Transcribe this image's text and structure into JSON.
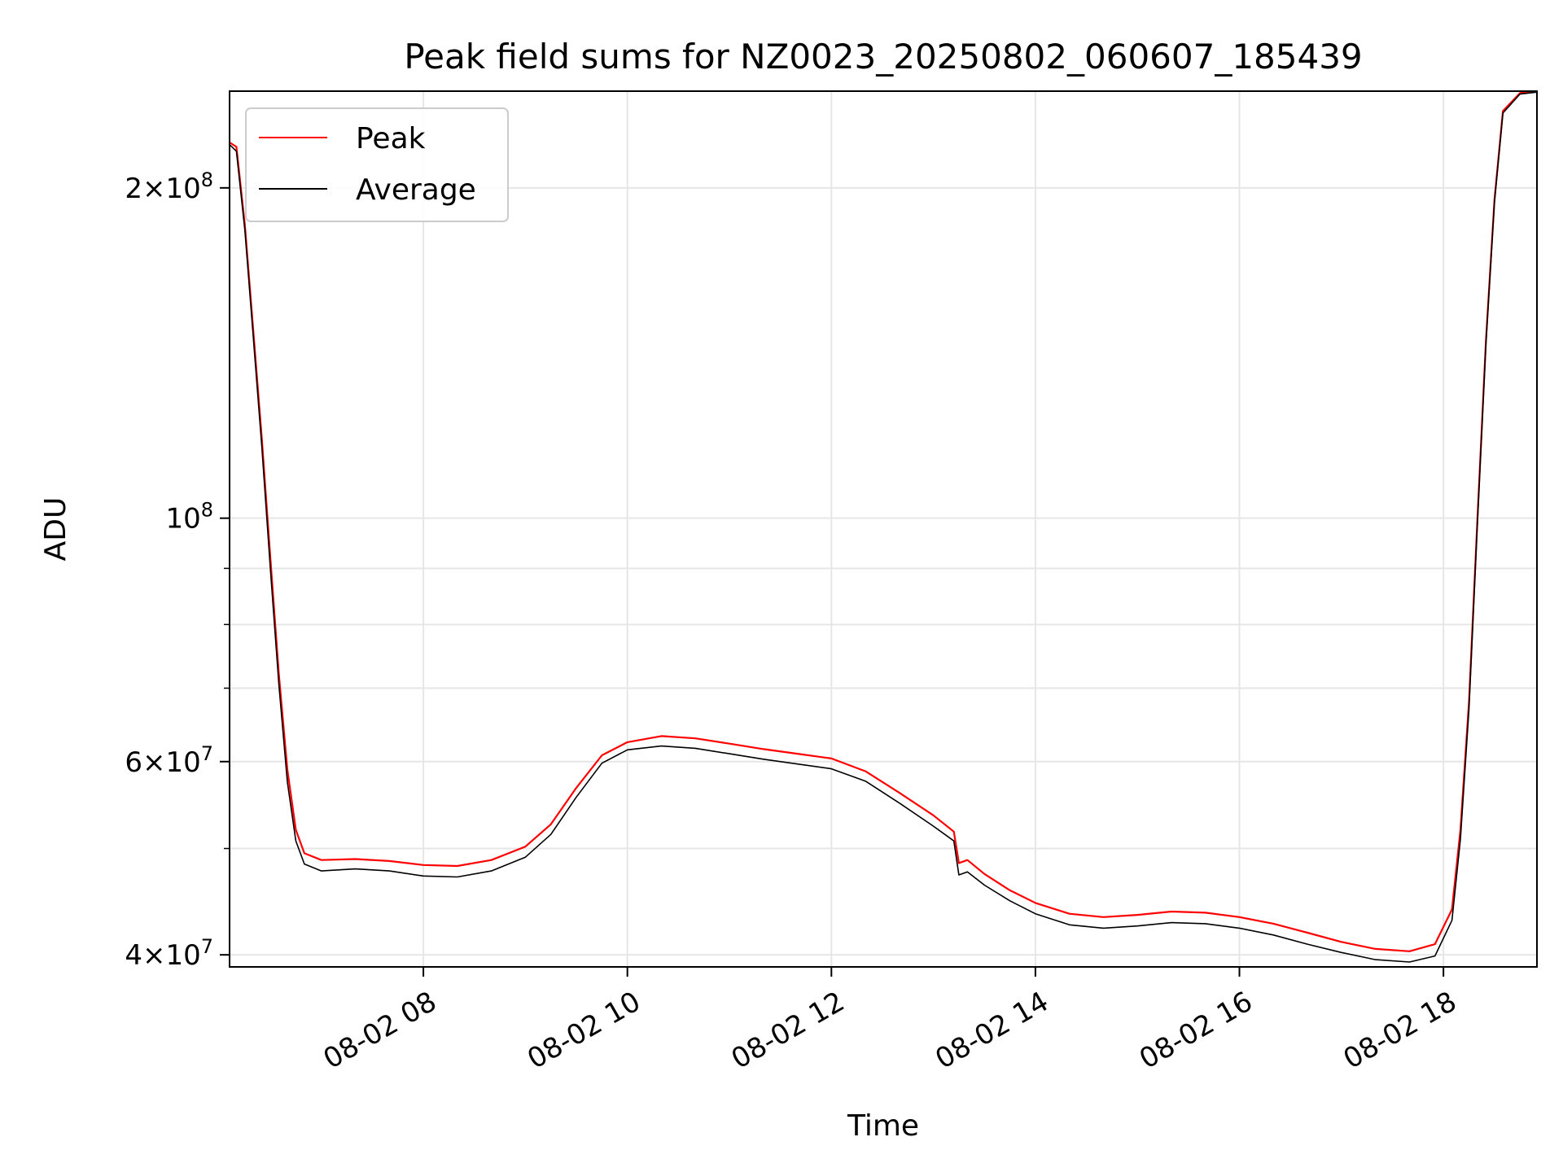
{
  "chart_data": {
    "type": "line",
    "title": "Peak field sums for NZ0023_20250802_060607_185439",
    "xlabel": "Time",
    "ylabel": "ADU",
    "x_range": [
      "2025-08-02 06:06",
      "2025-08-02 18:55"
    ],
    "y_scale": "log",
    "ylim": [
      39000000,
      245000000
    ],
    "grid": true,
    "legend_position": "top-left",
    "x_ticks": [
      {
        "value": "2025-08-02 08:00",
        "label": "08-02 08"
      },
      {
        "value": "2025-08-02 10:00",
        "label": "08-02 10"
      },
      {
        "value": "2025-08-02 12:00",
        "label": "08-02 12"
      },
      {
        "value": "2025-08-02 14:00",
        "label": "08-02 14"
      },
      {
        "value": "2025-08-02 16:00",
        "label": "08-02 16"
      },
      {
        "value": "2025-08-02 18:00",
        "label": "08-02 18"
      }
    ],
    "y_ticks": [
      {
        "value": 40000000,
        "mant": "4",
        "exp": "7"
      },
      {
        "value": 60000000,
        "mant": "6",
        "exp": "7"
      },
      {
        "value": 100000000,
        "mant": "",
        "exp": "8"
      },
      {
        "value": 200000000,
        "mant": "2",
        "exp": "8"
      }
    ],
    "y_minor_ticks": [
      50000000,
      70000000,
      80000000,
      90000000
    ],
    "series": [
      {
        "name": "Peak",
        "color": "#ff0000",
        "points": [
          [
            "2025-08-02 06:06",
            220000000
          ],
          [
            "2025-08-02 06:10",
            218000000
          ],
          [
            "2025-08-02 06:15",
            185000000
          ],
          [
            "2025-08-02 06:20",
            148000000
          ],
          [
            "2025-08-02 06:25",
            118000000
          ],
          [
            "2025-08-02 06:30",
            92000000
          ],
          [
            "2025-08-02 06:35",
            72000000
          ],
          [
            "2025-08-02 06:40",
            59000000
          ],
          [
            "2025-08-02 06:45",
            52000000
          ],
          [
            "2025-08-02 06:50",
            49500000
          ],
          [
            "2025-08-02 07:00",
            48800000
          ],
          [
            "2025-08-02 07:20",
            48900000
          ],
          [
            "2025-08-02 07:40",
            48700000
          ],
          [
            "2025-08-02 08:00",
            48300000
          ],
          [
            "2025-08-02 08:20",
            48200000
          ],
          [
            "2025-08-02 08:40",
            48800000
          ],
          [
            "2025-08-02 09:00",
            50200000
          ],
          [
            "2025-08-02 09:15",
            52600000
          ],
          [
            "2025-08-02 09:30",
            56800000
          ],
          [
            "2025-08-02 09:45",
            60800000
          ],
          [
            "2025-08-02 10:00",
            62500000
          ],
          [
            "2025-08-02 10:20",
            63300000
          ],
          [
            "2025-08-02 10:40",
            63000000
          ],
          [
            "2025-08-02 11:00",
            62300000
          ],
          [
            "2025-08-02 11:20",
            61600000
          ],
          [
            "2025-08-02 11:40",
            61000000
          ],
          [
            "2025-08-02 12:00",
            60400000
          ],
          [
            "2025-08-02 12:20",
            58800000
          ],
          [
            "2025-08-02 12:40",
            56200000
          ],
          [
            "2025-08-02 13:00",
            53600000
          ],
          [
            "2025-08-02 13:12",
            51800000
          ],
          [
            "2025-08-02 13:15",
            48500000
          ],
          [
            "2025-08-02 13:20",
            48800000
          ],
          [
            "2025-08-02 13:30",
            47400000
          ],
          [
            "2025-08-02 13:45",
            45800000
          ],
          [
            "2025-08-02 14:00",
            44600000
          ],
          [
            "2025-08-02 14:20",
            43600000
          ],
          [
            "2025-08-02 14:40",
            43300000
          ],
          [
            "2025-08-02 15:00",
            43500000
          ],
          [
            "2025-08-02 15:20",
            43800000
          ],
          [
            "2025-08-02 15:40",
            43700000
          ],
          [
            "2025-08-02 16:00",
            43300000
          ],
          [
            "2025-08-02 16:20",
            42700000
          ],
          [
            "2025-08-02 16:40",
            41900000
          ],
          [
            "2025-08-02 17:00",
            41100000
          ],
          [
            "2025-08-02 17:20",
            40500000
          ],
          [
            "2025-08-02 17:40",
            40300000
          ],
          [
            "2025-08-02 17:55",
            40900000
          ],
          [
            "2025-08-02 18:05",
            44000000
          ],
          [
            "2025-08-02 18:10",
            52000000
          ],
          [
            "2025-08-02 18:15",
            68000000
          ],
          [
            "2025-08-02 18:20",
            100000000
          ],
          [
            "2025-08-02 18:25",
            145000000
          ],
          [
            "2025-08-02 18:30",
            195000000
          ],
          [
            "2025-08-02 18:35",
            235000000
          ],
          [
            "2025-08-02 18:45",
            244000000
          ],
          [
            "2025-08-02 18:55",
            245000000
          ]
        ]
      },
      {
        "name": "Average",
        "color": "#000000",
        "points": [
          [
            "2025-08-02 06:06",
            219000000
          ],
          [
            "2025-08-02 06:10",
            216000000
          ],
          [
            "2025-08-02 06:15",
            183000000
          ],
          [
            "2025-08-02 06:20",
            146000000
          ],
          [
            "2025-08-02 06:25",
            116000000
          ],
          [
            "2025-08-02 06:30",
            90000000
          ],
          [
            "2025-08-02 06:35",
            70500000
          ],
          [
            "2025-08-02 06:40",
            57500000
          ],
          [
            "2025-08-02 06:45",
            50800000
          ],
          [
            "2025-08-02 06:50",
            48400000
          ],
          [
            "2025-08-02 07:00",
            47700000
          ],
          [
            "2025-08-02 07:20",
            47900000
          ],
          [
            "2025-08-02 07:40",
            47700000
          ],
          [
            "2025-08-02 08:00",
            47200000
          ],
          [
            "2025-08-02 08:20",
            47100000
          ],
          [
            "2025-08-02 08:40",
            47700000
          ],
          [
            "2025-08-02 09:00",
            49100000
          ],
          [
            "2025-08-02 09:15",
            51500000
          ],
          [
            "2025-08-02 09:30",
            55700000
          ],
          [
            "2025-08-02 09:45",
            59800000
          ],
          [
            "2025-08-02 10:00",
            61500000
          ],
          [
            "2025-08-02 10:20",
            62000000
          ],
          [
            "2025-08-02 10:40",
            61700000
          ],
          [
            "2025-08-02 11:00",
            61000000
          ],
          [
            "2025-08-02 11:20",
            60300000
          ],
          [
            "2025-08-02 11:40",
            59700000
          ],
          [
            "2025-08-02 12:00",
            59100000
          ],
          [
            "2025-08-02 12:20",
            57600000
          ],
          [
            "2025-08-02 12:40",
            55000000
          ],
          [
            "2025-08-02 13:00",
            52400000
          ],
          [
            "2025-08-02 13:12",
            50800000
          ],
          [
            "2025-08-02 13:15",
            47300000
          ],
          [
            "2025-08-02 13:20",
            47600000
          ],
          [
            "2025-08-02 13:30",
            46300000
          ],
          [
            "2025-08-02 13:45",
            44800000
          ],
          [
            "2025-08-02 14:00",
            43600000
          ],
          [
            "2025-08-02 14:20",
            42600000
          ],
          [
            "2025-08-02 14:40",
            42300000
          ],
          [
            "2025-08-02 15:00",
            42500000
          ],
          [
            "2025-08-02 15:20",
            42800000
          ],
          [
            "2025-08-02 15:40",
            42700000
          ],
          [
            "2025-08-02 16:00",
            42300000
          ],
          [
            "2025-08-02 16:20",
            41700000
          ],
          [
            "2025-08-02 16:40",
            40900000
          ],
          [
            "2025-08-02 17:00",
            40200000
          ],
          [
            "2025-08-02 17:20",
            39600000
          ],
          [
            "2025-08-02 17:40",
            39400000
          ],
          [
            "2025-08-02 17:55",
            39900000
          ],
          [
            "2025-08-02 18:05",
            43000000
          ],
          [
            "2025-08-02 18:10",
            51000000
          ],
          [
            "2025-08-02 18:15",
            67000000
          ],
          [
            "2025-08-02 18:20",
            99000000
          ],
          [
            "2025-08-02 18:25",
            144000000
          ],
          [
            "2025-08-02 18:30",
            194000000
          ],
          [
            "2025-08-02 18:35",
            234000000
          ],
          [
            "2025-08-02 18:45",
            243500000
          ],
          [
            "2025-08-02 18:55",
            244500000
          ]
        ]
      }
    ]
  }
}
